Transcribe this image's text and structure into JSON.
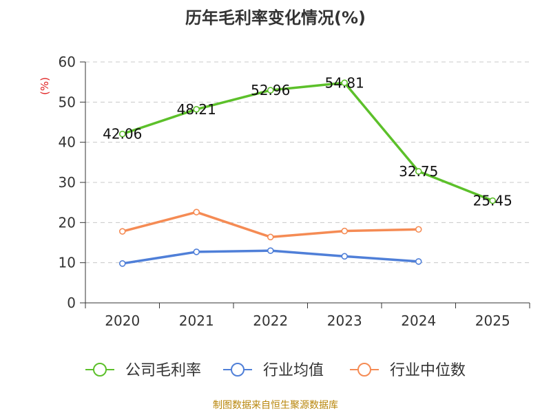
{
  "chart_data": {
    "type": "line",
    "title": "历年毛利率变化情况(%)",
    "ylabel": "(%)",
    "xlabel": "",
    "categories": [
      "2020",
      "2021",
      "2022",
      "2023",
      "2024",
      "2025"
    ],
    "ylim": [
      0,
      60
    ],
    "yticks": [
      0,
      10,
      20,
      30,
      40,
      50,
      60
    ],
    "grid": true,
    "legend": "bottom",
    "series": [
      {
        "name": "公司毛利率",
        "color": "#5cc02a",
        "values": [
          42.06,
          48.21,
          52.96,
          54.81,
          32.75,
          25.45
        ],
        "labels": [
          "42.06",
          "48.21",
          "52.96",
          "54.81",
          "32.75",
          "25.45"
        ]
      },
      {
        "name": "行业均值",
        "color": "#4f7fd8",
        "values": [
          9.8,
          12.7,
          13.0,
          11.6,
          10.3,
          null
        ]
      },
      {
        "name": "行业中位数",
        "color": "#f58b54",
        "values": [
          17.8,
          22.6,
          16.4,
          17.9,
          18.3,
          null
        ]
      }
    ],
    "source": "制图数据来自恒生聚源数据库"
  }
}
